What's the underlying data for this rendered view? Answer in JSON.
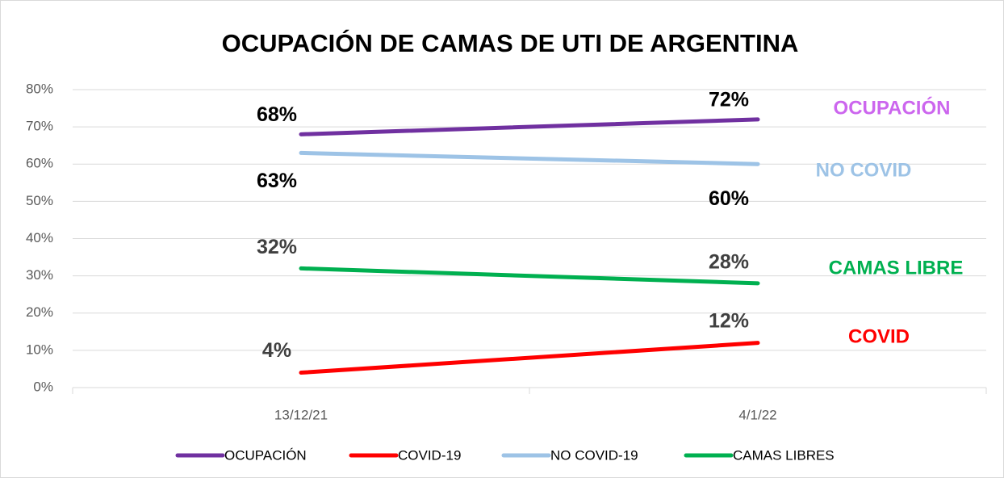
{
  "chart_data": {
    "type": "line",
    "title": "OCUPACIÓN DE CAMAS DE UTI DE ARGENTINA",
    "categories": [
      "13/12/21",
      "4/1/22"
    ],
    "series": [
      {
        "name": "OCUPACIÓN",
        "color": "#7030a0",
        "values": [
          68,
          72
        ],
        "value_labels": [
          "68%",
          "72%"
        ]
      },
      {
        "name": "COVID-19",
        "color": "#ff0000",
        "values": [
          4,
          12
        ],
        "value_labels": [
          "4%",
          "12%"
        ]
      },
      {
        "name": "NO COVID-19",
        "color": "#9dc3e6",
        "values": [
          63,
          60
        ],
        "value_labels": [
          "63%",
          "60%"
        ]
      },
      {
        "name": "CAMAS LIBRES",
        "color": "#00b050",
        "values": [
          32,
          28
        ],
        "value_labels": [
          "32%",
          "28%"
        ]
      }
    ],
    "annotations": [
      {
        "text": "OCUPACIÓN",
        "color": "#cc66ee"
      },
      {
        "text": "COVID",
        "color": "#ff0000"
      },
      {
        "text": "NO COVID",
        "color": "#9dc3e6"
      },
      {
        "text": "CAMAS LIBRE",
        "color": "#00b050"
      }
    ],
    "ylim": [
      0,
      80
    ],
    "yticks": [
      {
        "value": 0,
        "label": "0%"
      },
      {
        "value": 10,
        "label": "10%"
      },
      {
        "value": 20,
        "label": "20%"
      },
      {
        "value": 30,
        "label": "30%"
      },
      {
        "value": 40,
        "label": "40%"
      },
      {
        "value": 50,
        "label": "50%"
      },
      {
        "value": 60,
        "label": "60%"
      },
      {
        "value": 70,
        "label": "70%"
      },
      {
        "value": 80,
        "label": "80%"
      }
    ],
    "grid": true,
    "legend": "bottom"
  }
}
